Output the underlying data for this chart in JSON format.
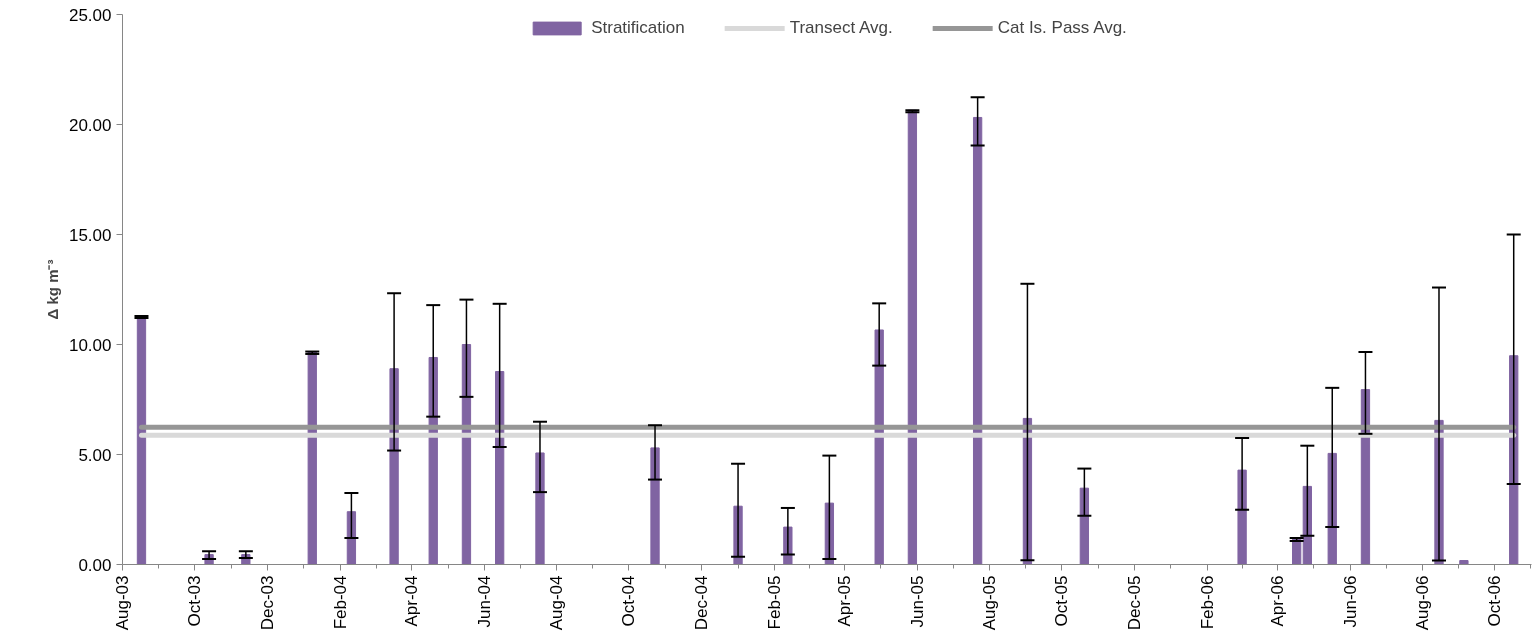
{
  "chart_data": {
    "type": "bar",
    "ylabel": "Δ kg m⁻³",
    "x": [
      "2003-08-17",
      "2003-09-19",
      "2003-10-13",
      "2003-11-13",
      "2004-01-08",
      "2004-02-10",
      "2004-03-17",
      "2004-04-19",
      "2004-05-17",
      "2004-06-14",
      "2004-07-18",
      "2004-10-23",
      "2005-01-01",
      "2005-02-12",
      "2005-03-19",
      "2005-04-30",
      "2005-05-28",
      "2005-07-22",
      "2005-09-02",
      "2005-10-20",
      "2006-03-02",
      "2006-04-17",
      "2006-04-26",
      "2006-05-17",
      "2006-06-14",
      "2006-08-15",
      "2006-09-05",
      "2006-10-17"
    ],
    "series": [
      {
        "name": "Stratification",
        "color": "#8064a2",
        "values": [
          11.3,
          null,
          0.45,
          0.45,
          9.68,
          2.4,
          8.9,
          9.41,
          10.0,
          8.77,
          5.07,
          5.3,
          2.65,
          1.7,
          2.79,
          10.66,
          20.65,
          20.32,
          6.64,
          3.47,
          4.29,
          1.21,
          3.55,
          5.05,
          7.95,
          6.55,
          0.18,
          9.49
        ],
        "errors": [
          [
            11.2,
            11.3
          ],
          null,
          [
            0.25,
            0.6
          ],
          [
            0.3,
            0.6
          ],
          [
            9.57,
            9.68
          ],
          [
            1.21,
            3.25
          ],
          [
            5.18,
            12.33
          ],
          [
            6.72,
            11.79
          ],
          [
            7.62,
            12.04
          ],
          [
            5.34,
            11.85
          ],
          [
            3.29,
            6.49
          ],
          [
            3.86,
            6.33
          ],
          [
            0.35,
            4.58
          ],
          [
            0.45,
            2.57
          ],
          [
            0.25,
            4.95
          ],
          [
            9.04,
            11.87
          ],
          [
            20.56,
            20.65
          ],
          [
            19.04,
            21.24
          ],
          [
            0.19,
            12.76
          ],
          [
            2.22,
            4.36
          ],
          [
            2.49,
            5.75
          ],
          [
            1.07,
            1.21
          ],
          [
            1.31,
            5.4
          ],
          [
            1.71,
            8.03
          ],
          [
            5.94,
            9.66
          ],
          [
            0.18,
            12.59
          ],
          null,
          [
            3.66,
            15.0
          ]
        ]
      },
      {
        "name": "Transect Avg.",
        "type": "line",
        "color": "#d9d9d9",
        "x": [
          "2003-08-17",
          "2006-10-17"
        ],
        "values": [
          5.88,
          5.88
        ]
      },
      {
        "name": "Cat Is. Pass Avg.",
        "type": "line",
        "color": "#969696",
        "x": [
          "2003-08-17",
          "2006-10-17"
        ],
        "values": [
          6.24,
          6.24
        ]
      }
    ],
    "xlim": [
      "2003-08-01",
      "2006-11-01"
    ],
    "xticks": [
      {
        "value": "2003-08-01",
        "label": "Aug-03"
      },
      {
        "value": "2003-10-01",
        "label": "Oct-03"
      },
      {
        "value": "2003-12-01",
        "label": "Dec-03"
      },
      {
        "value": "2004-02-01",
        "label": "Feb-04"
      },
      {
        "value": "2004-04-01",
        "label": "Apr-04"
      },
      {
        "value": "2004-06-01",
        "label": "Jun-04"
      },
      {
        "value": "2004-08-01",
        "label": "Aug-04"
      },
      {
        "value": "2004-10-01",
        "label": "Oct-04"
      },
      {
        "value": "2004-12-01",
        "label": "Dec-04"
      },
      {
        "value": "2005-02-01",
        "label": "Feb-05"
      },
      {
        "value": "2005-04-01",
        "label": "Apr-05"
      },
      {
        "value": "2005-06-01",
        "label": "Jun-05"
      },
      {
        "value": "2005-08-01",
        "label": "Aug-05"
      },
      {
        "value": "2005-10-01",
        "label": "Oct-05"
      },
      {
        "value": "2005-12-01",
        "label": "Dec-05"
      },
      {
        "value": "2006-02-01",
        "label": "Feb-06"
      },
      {
        "value": "2006-04-01",
        "label": "Apr-06"
      },
      {
        "value": "2006-06-01",
        "label": "Jun-06"
      },
      {
        "value": "2006-08-01",
        "label": "Aug-06"
      },
      {
        "value": "2006-10-01",
        "label": "Oct-06"
      }
    ],
    "ylim": [
      0,
      25
    ],
    "yticks": [
      {
        "value": 0,
        "label": "0.00"
      },
      {
        "value": 5,
        "label": "5.00"
      },
      {
        "value": 10,
        "label": "10.00"
      },
      {
        "value": 15,
        "label": "15.00"
      },
      {
        "value": 20,
        "label": "20.00"
      },
      {
        "value": 25,
        "label": "25.00"
      }
    ],
    "grid": false,
    "legend": "top"
  }
}
